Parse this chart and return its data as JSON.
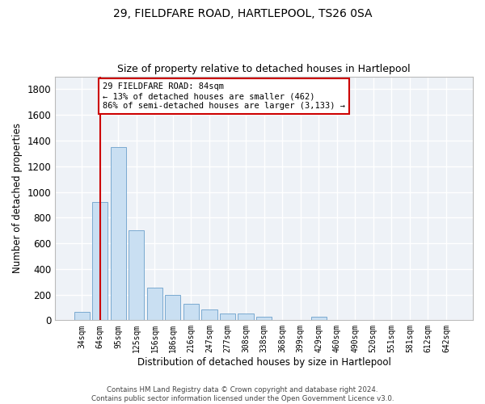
{
  "title1": "29, FIELDFARE ROAD, HARTLEPOOL, TS26 0SA",
  "title2": "Size of property relative to detached houses in Hartlepool",
  "xlabel": "Distribution of detached houses by size in Hartlepool",
  "ylabel": "Number of detached properties",
  "bar_color": "#c9dff2",
  "bar_edge_color": "#7aaad0",
  "background_color": "#eef2f7",
  "grid_color": "#ffffff",
  "categories": [
    "34sqm",
    "64sqm",
    "95sqm",
    "125sqm",
    "156sqm",
    "186sqm",
    "216sqm",
    "247sqm",
    "277sqm",
    "308sqm",
    "338sqm",
    "368sqm",
    "399sqm",
    "429sqm",
    "460sqm",
    "490sqm",
    "520sqm",
    "551sqm",
    "581sqm",
    "612sqm",
    "642sqm"
  ],
  "values": [
    65,
    920,
    1350,
    700,
    255,
    200,
    125,
    85,
    55,
    55,
    30,
    0,
    0,
    25,
    0,
    0,
    0,
    0,
    0,
    0,
    0
  ],
  "ylim": [
    0,
    1900
  ],
  "yticks": [
    0,
    200,
    400,
    600,
    800,
    1000,
    1200,
    1400,
    1600,
    1800
  ],
  "property_bin_index": 1.5,
  "annotation_line1": "29 FIELDFARE ROAD: 84sqm",
  "annotation_line2": "← 13% of detached houses are smaller (462)",
  "annotation_line3": "86% of semi-detached houses are larger (3,133) →",
  "vline_color": "#cc0000",
  "annotation_box_facecolor": "#ffffff",
  "annotation_box_edgecolor": "#cc0000",
  "footer_line1": "Contains HM Land Registry data © Crown copyright and database right 2024.",
  "footer_line2": "Contains public sector information licensed under the Open Government Licence v3.0."
}
